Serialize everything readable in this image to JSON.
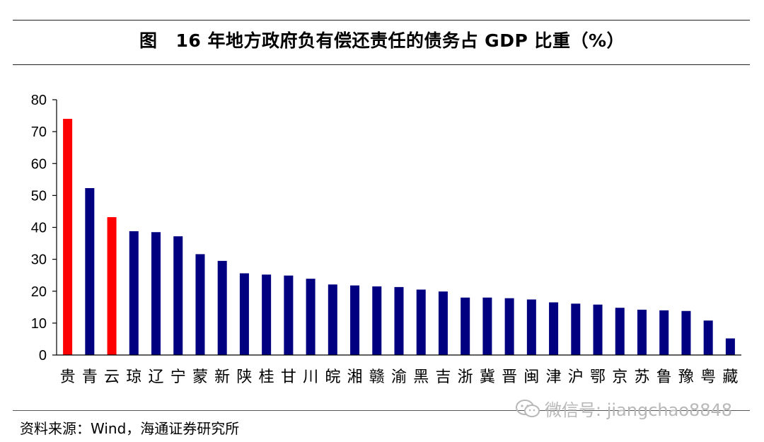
{
  "title": {
    "prefix": "图",
    "text": "16 年地方政府负有偿还责任的债务占 GDP 比重（%）"
  },
  "source": "资料来源：Wind，海通证券研究所",
  "watermark": {
    "icon": "wechat-icon",
    "text": "微信号: jiangchao8848"
  },
  "colors": {
    "bar_default": "#000080",
    "bar_highlight": "#ff0000",
    "axis": "#000000"
  },
  "chart_data": {
    "type": "bar",
    "title": "16 年地方政府负有偿还责任的债务占 GDP 比重（%）",
    "xlabel": "",
    "ylabel": "",
    "ylim": [
      0,
      80
    ],
    "yticks": [
      0,
      10,
      20,
      30,
      40,
      50,
      60,
      70,
      80
    ],
    "grid": false,
    "legend": "none",
    "categories": [
      "贵",
      "青",
      "云",
      "琼",
      "辽",
      "宁",
      "蒙",
      "新",
      "陕",
      "桂",
      "甘",
      "川",
      "皖",
      "湘",
      "赣",
      "渝",
      "黑",
      "吉",
      "浙",
      "冀",
      "晋",
      "闽",
      "津",
      "沪",
      "鄂",
      "京",
      "苏",
      "鲁",
      "豫",
      "粤",
      "藏"
    ],
    "values": [
      74,
      52.3,
      43.2,
      38.8,
      38.5,
      37.2,
      31.6,
      29.5,
      25.6,
      25.2,
      24.9,
      23.9,
      22.1,
      21.8,
      21.5,
      21.3,
      20.5,
      19.9,
      18.0,
      18.0,
      17.8,
      17.4,
      16.5,
      16.1,
      15.8,
      14.8,
      14.2,
      14.0,
      13.8,
      10.8,
      5.2
    ],
    "highlight": [
      "贵",
      "云"
    ]
  }
}
